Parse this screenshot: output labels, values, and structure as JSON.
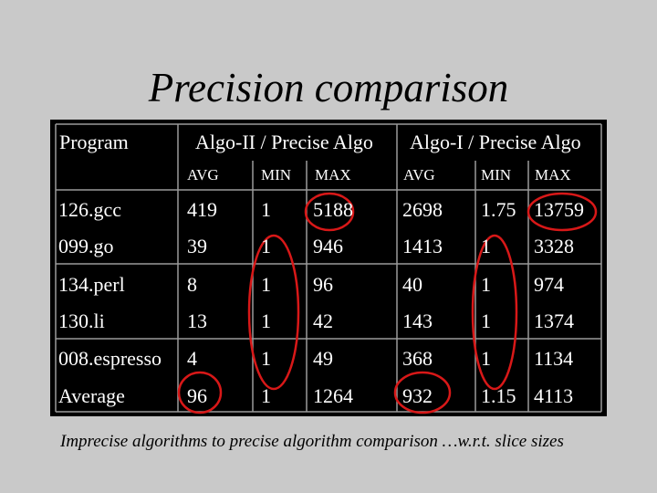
{
  "slide": {
    "title": "Precision comparison",
    "caption": "Imprecise algorithms to precise algorithm comparison …w.r.t. slice sizes"
  },
  "table": {
    "header": {
      "program": "Program",
      "group1": "Algo-II / Precise Algo",
      "group2": "Algo-I / Precise Algo",
      "sub": [
        "AVG",
        "MIN",
        "MAX",
        "AVG",
        "MIN",
        "MAX"
      ]
    },
    "rows": [
      {
        "program": "126.gcc",
        "values": [
          "419",
          "1",
          "5188",
          "2698",
          "1.75",
          "13759"
        ]
      },
      {
        "program": "099.go",
        "values": [
          "39",
          "1",
          "946",
          "1413",
          "1",
          "3328"
        ]
      },
      {
        "program": "134.perl",
        "values": [
          "8",
          "1",
          "96",
          "40",
          "1",
          "974"
        ]
      },
      {
        "program": "130.li",
        "values": [
          "13",
          "1",
          "42",
          "143",
          "1",
          "1374"
        ]
      },
      {
        "program": "008.espresso",
        "values": [
          "4",
          "1",
          "49",
          "368",
          "1",
          "1134"
        ]
      },
      {
        "program": "Average",
        "values": [
          "96",
          "1",
          "1264",
          "932",
          "1.15",
          "4113"
        ]
      }
    ]
  },
  "colors": {
    "slide_background": "#c9c9c9",
    "table_background": "#000000",
    "table_text": "#ffffff",
    "grid": "#9a9a9a",
    "annotation": "#d81818"
  }
}
